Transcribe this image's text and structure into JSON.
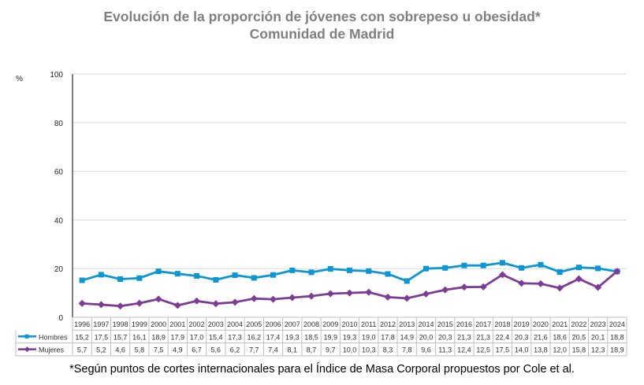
{
  "chart_data": {
    "type": "line",
    "title": "Evolución de la proporción de jóvenes con sobrepeso u obesidad*",
    "subtitle": "Comunidad de Madrid",
    "ylabel": "%",
    "ylim": [
      0,
      100
    ],
    "yticks": [
      0,
      20,
      40,
      60,
      80,
      100
    ],
    "grid": true,
    "legend": "bottom-table",
    "categories": [
      "1996",
      "1997",
      "1998",
      "1999",
      "2000",
      "2001",
      "2002",
      "2003",
      "2004",
      "2005",
      "2006",
      "2007",
      "2008",
      "2009",
      "2010",
      "2011",
      "2012",
      "2013",
      "2014",
      "2015",
      "2016",
      "2017",
      "2018",
      "2019",
      "2020",
      "2021",
      "2022",
      "2023",
      "2024"
    ],
    "series": [
      {
        "name": "Hombres",
        "color": "#0e96d2",
        "marker": "square",
        "values": [
          15.2,
          17.5,
          15.7,
          16.1,
          18.9,
          17.9,
          17.0,
          15.4,
          17.3,
          16.2,
          17.4,
          19.3,
          18.5,
          19.9,
          19.3,
          19.0,
          17.8,
          14.9,
          20.0,
          20.3,
          21.3,
          21.3,
          22.4,
          20.3,
          21.6,
          18.6,
          20.5,
          20.1,
          18.8
        ]
      },
      {
        "name": "Mujeres",
        "color": "#7e3b96",
        "marker": "diamond",
        "values": [
          5.7,
          5.2,
          4.6,
          5.8,
          7.5,
          4.9,
          6.7,
          5.6,
          6.2,
          7.7,
          7.4,
          8.1,
          8.7,
          9.7,
          10.0,
          10.3,
          8.3,
          7.8,
          9.6,
          11.3,
          12.4,
          12.5,
          17.5,
          14.0,
          13.8,
          12.0,
          15.8,
          12.3,
          18.9
        ]
      }
    ],
    "footnote": "*Según puntos de cortes internacionales para el Índice de Masa Corporal propuestos por Cole et al."
  }
}
